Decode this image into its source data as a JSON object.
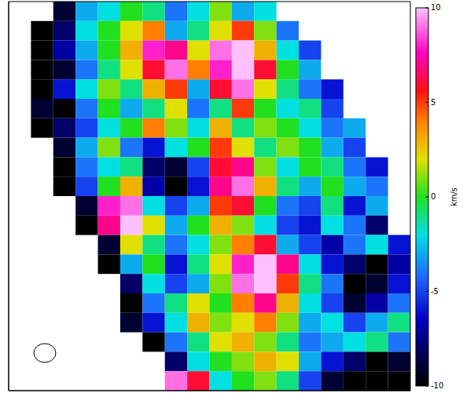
{
  "chart_data": {
    "type": "heatmap",
    "tick_labels": false,
    "cells": [
      [
        null,
        null,
        -9,
        -3,
        -2,
        0,
        -1,
        -4,
        -2,
        1,
        -3,
        -2,
        null,
        null,
        null,
        null,
        null,
        null
      ],
      [
        null,
        -10,
        -8,
        -2,
        0,
        2,
        4,
        -3,
        -1,
        2,
        5,
        1,
        -4,
        null,
        null,
        null,
        null,
        null
      ],
      [
        null,
        -10,
        -7,
        -3,
        0,
        3,
        8,
        7,
        2,
        9,
        10,
        3,
        -2,
        -5,
        null,
        null,
        null,
        null
      ],
      [
        null,
        -10,
        -9,
        -4,
        -1,
        2,
        6,
        9,
        4,
        8,
        10,
        6,
        0,
        -3,
        null,
        null,
        null,
        null
      ],
      [
        null,
        -10,
        -6,
        -2,
        1,
        -1,
        3,
        5,
        -3,
        6,
        9,
        2,
        -1,
        -4,
        -6,
        null,
        null,
        null
      ],
      [
        null,
        -9,
        -10,
        -4,
        0,
        -3,
        -1,
        2,
        -4,
        -1,
        5,
        0,
        -2,
        -1,
        -5,
        null,
        null,
        null
      ],
      [
        null,
        -10,
        -8,
        -5,
        -2,
        0,
        4,
        1,
        -2,
        3,
        -1,
        1,
        0,
        -2,
        -4,
        -3,
        null,
        null
      ],
      [
        null,
        null,
        -9,
        -3,
        1,
        -4,
        -6,
        -2,
        0,
        5,
        2,
        -1,
        1,
        0,
        -3,
        -5,
        null,
        null
      ],
      [
        null,
        null,
        -10,
        -4,
        -2,
        -1,
        -8,
        -9,
        -5,
        6,
        7,
        1,
        -2,
        0,
        -1,
        -4,
        -6,
        null
      ],
      [
        null,
        null,
        -10,
        -5,
        0,
        3,
        -7,
        -10,
        -6,
        7,
        9,
        3,
        -1,
        -3,
        0,
        -3,
        -4,
        null
      ],
      [
        null,
        null,
        null,
        -9,
        8,
        9,
        -2,
        -5,
        -3,
        5,
        6,
        0,
        -4,
        -5,
        -1,
        -6,
        -3,
        null
      ],
      [
        null,
        null,
        null,
        -10,
        7,
        10,
        2,
        -3,
        0,
        3,
        1,
        -2,
        -5,
        -6,
        -2,
        -4,
        -8,
        null
      ],
      [
        null,
        null,
        null,
        null,
        -9,
        2,
        -1,
        -4,
        -2,
        1,
        4,
        6,
        -3,
        -5,
        -7,
        -4,
        -2,
        -6
      ],
      [
        null,
        null,
        null,
        null,
        -10,
        -3,
        0,
        -6,
        -1,
        2,
        8,
        10,
        7,
        -2,
        -6,
        -8,
        -10,
        -7
      ],
      [
        null,
        null,
        null,
        null,
        null,
        -8,
        -2,
        -5,
        -3,
        1,
        9,
        10,
        5,
        -1,
        -4,
        -10,
        -9,
        -6
      ],
      [
        null,
        null,
        null,
        null,
        null,
        -10,
        -4,
        -1,
        2,
        0,
        4,
        7,
        3,
        -2,
        -5,
        -9,
        -7,
        -4
      ],
      [
        null,
        null,
        null,
        null,
        null,
        -9,
        -6,
        -2,
        3,
        1,
        2,
        4,
        1,
        -3,
        -2,
        -5,
        -3,
        -1
      ],
      [
        null,
        null,
        null,
        null,
        null,
        null,
        -10,
        -4,
        -1,
        2,
        3,
        1,
        -1,
        -4,
        -3,
        -2,
        -1,
        -4
      ],
      [
        null,
        null,
        null,
        null,
        null,
        null,
        null,
        -8,
        -2,
        0,
        1,
        3,
        2,
        -3,
        -6,
        -8,
        -10,
        -9
      ],
      [
        null,
        null,
        null,
        null,
        null,
        null,
        null,
        9,
        6,
        -2,
        0,
        1,
        -1,
        -5,
        -9,
        -10,
        -10,
        -10
      ]
    ],
    "colorbar": {
      "range": [
        -10,
        10
      ],
      "ticks": [
        -10,
        -5,
        0,
        5,
        10
      ],
      "label": "km/s"
    }
  }
}
